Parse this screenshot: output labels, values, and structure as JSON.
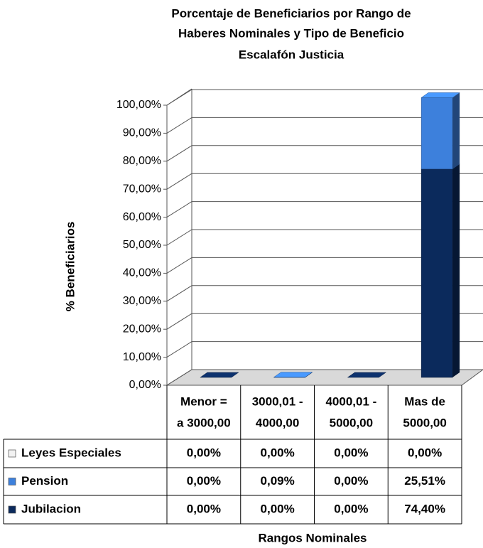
{
  "chart_data": {
    "type": "bar3d_stacked",
    "title": [
      "Porcentaje de Beneficiarios por Rango de",
      "Haberes Nominales y Tipo de Beneficio",
      "Escalafón Justicia"
    ],
    "y_label": "% Beneficiarios",
    "x_label": "Rangos Nominales",
    "categories": [
      [
        "Menor =",
        "a 3000,00"
      ],
      [
        "3000,01 -",
        "4000,00"
      ],
      [
        "4000,01 -",
        "5000,00"
      ],
      [
        "Mas de",
        "5000,00"
      ]
    ],
    "series": [
      {
        "name": "Leyes Especiales",
        "color": "#f2f2f2",
        "values": [
          0,
          0,
          0,
          0
        ],
        "value_labels": [
          "0,00%",
          "0,00%",
          "0,00%",
          "0,00%"
        ]
      },
      {
        "name": "Pension",
        "color": "#3d80dc",
        "values": [
          0,
          0.09,
          0,
          25.51
        ],
        "value_labels": [
          "0,00%",
          "0,09%",
          "0,00%",
          "25,51%"
        ]
      },
      {
        "name": "Jubilacion",
        "color": "#0b2a5c",
        "values": [
          0,
          0,
          0,
          74.4
        ],
        "value_labels": [
          "0,00%",
          "0,00%",
          "0,00%",
          "74,40%"
        ]
      }
    ],
    "ylim": [
      0,
      100
    ],
    "yticks": [
      {
        "value": 0,
        "label": "0,00%"
      },
      {
        "value": 10,
        "label": "10,00%"
      },
      {
        "value": 20,
        "label": "20,00%"
      },
      {
        "value": 30,
        "label": "30,00%"
      },
      {
        "value": 40,
        "label": "40,00%"
      },
      {
        "value": 50,
        "label": "50,00%"
      },
      {
        "value": 60,
        "label": "60,00%"
      },
      {
        "value": 70,
        "label": "70,00%"
      },
      {
        "value": 80,
        "label": "80,00%"
      },
      {
        "value": 90,
        "label": "90,00%"
      },
      {
        "value": 100,
        "label": "100,00%"
      }
    ],
    "grid": true
  }
}
